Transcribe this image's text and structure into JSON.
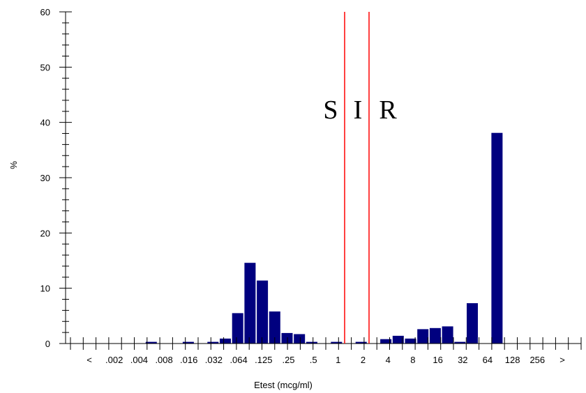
{
  "chart_data": {
    "type": "bar",
    "xlabel": "Etest (mcg/ml)",
    "ylabel": "%",
    "ylim": [
      0,
      60
    ],
    "y_ticks": [
      "0",
      "10",
      "20",
      "30",
      "40",
      "50",
      "60"
    ],
    "x_tick_labels": [
      "<",
      ".002",
      ".004",
      ".008",
      ".016",
      ".032",
      ".064",
      ".125",
      ".25",
      ".5",
      "1",
      "2",
      "4",
      "8",
      "16",
      "32",
      "64",
      "128",
      "256",
      ">"
    ],
    "bins": [
      ".001",
      ".0015",
      ".002",
      ".003",
      ".004",
      ".006",
      ".008",
      ".012",
      ".016",
      ".023",
      ".032",
      ".047",
      ".064",
      ".094",
      ".125",
      ".19",
      ".25",
      ".38",
      ".5",
      ".75",
      "1",
      "1.5",
      "2",
      "3",
      "4",
      "6",
      "8",
      "12",
      "16",
      "24",
      "32",
      "48",
      "64"
    ],
    "values": [
      0,
      0,
      0,
      0,
      0.3,
      0,
      0,
      0.3,
      0,
      0.3,
      0.9,
      5.5,
      14.6,
      11.4,
      5.8,
      1.9,
      1.7,
      0.3,
      0,
      0.3,
      0,
      0.3,
      0,
      0.8,
      1.4,
      0.9,
      2.6,
      2.8,
      3.1,
      0.3,
      7.3,
      0,
      38.1
    ],
    "bar_color": "#00007f",
    "breakpoint_color": "#ff0000",
    "breakpoint_lines": [
      {
        "value": "between 1 and 2"
      },
      {
        "value": "between 2 and 4"
      }
    ],
    "zone_labels": [
      "S",
      "I",
      "R"
    ],
    "grid": false
  }
}
